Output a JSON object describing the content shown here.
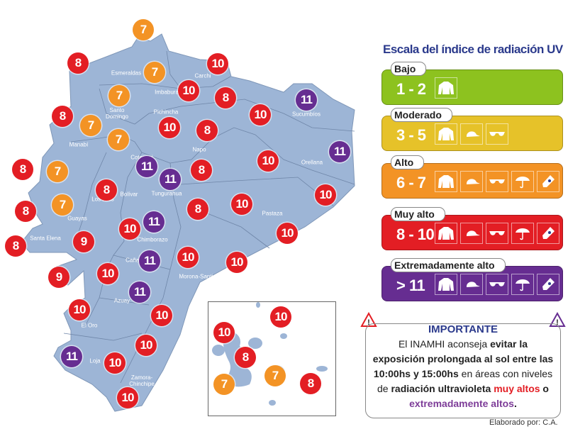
{
  "map": {
    "land_color": "#9db5d6",
    "provinces": [
      "Esmeraldas",
      "Carchi",
      "Imbabura",
      "Santo\nDomingo",
      "Pichincha",
      "Manabí",
      "Napo",
      "Cotopaxi",
      "Orellana",
      "Sucumbíos",
      "Bolívar",
      "Tungurahua",
      "Los Ríos",
      "Guayas",
      "Pastaza",
      "Santa Elena",
      "Chimborazo",
      "Cañar",
      "Morona-Santiago",
      "Azuay",
      "El Oro",
      "Loja",
      "Zamora-\nChinchipe"
    ],
    "markers": [
      7,
      8,
      7,
      10,
      7,
      10,
      8,
      8,
      7,
      10,
      11,
      10,
      8,
      7,
      11,
      11,
      10,
      8,
      7,
      11,
      8,
      8,
      10,
      8,
      7,
      8,
      10,
      11,
      10,
      10,
      9,
      8,
      11,
      10,
      10,
      9,
      10,
      11,
      10,
      10,
      10,
      11,
      10,
      10
    ],
    "galapagos_markers": [
      10,
      10,
      8,
      7,
      7,
      8
    ]
  },
  "legend": {
    "title": "Escala del índice de radiación UV",
    "levels": [
      {
        "name": "Bajo",
        "range": "1 - 2",
        "color": "#8dc21f",
        "icons": [
          "shirt-icon"
        ]
      },
      {
        "name": "Moderado",
        "range": "3 - 5",
        "color": "#e6c229",
        "icons": [
          "shirt-icon",
          "cap-icon",
          "sunglasses-icon"
        ]
      },
      {
        "name": "Alto",
        "range": "6 - 7",
        "color": "#f39325",
        "icons": [
          "shirt-icon",
          "cap-icon",
          "sunglasses-icon",
          "umbrella-icon",
          "sunscreen-icon"
        ]
      },
      {
        "name": "Muy alto",
        "range": "8 - 10",
        "color": "#e31e24",
        "icons": [
          "shirt-icon",
          "cap-icon",
          "sunglasses-icon",
          "umbrella-icon",
          "sunscreen-icon"
        ]
      },
      {
        "name": "Extremadamente alto",
        "range": "> 11",
        "color": "#662d91",
        "icons": [
          "shirt-icon",
          "cap-icon",
          "sunglasses-icon",
          "umbrella-icon",
          "sunscreen-icon"
        ]
      }
    ]
  },
  "important": {
    "title": "IMPORTANTE",
    "t1": "El INAMHI aconseja ",
    "b1": "evitar la exposición prolongada al sol entre las 10:00hs y 15:00hs",
    "t2": " en áreas con niveles de ",
    "b2": "radiación ultravioleta",
    "red": "muy altos",
    "t3": " o ",
    "purple": "extremadamente altos",
    "end": "."
  },
  "credit": "Elaborado por: C.A."
}
